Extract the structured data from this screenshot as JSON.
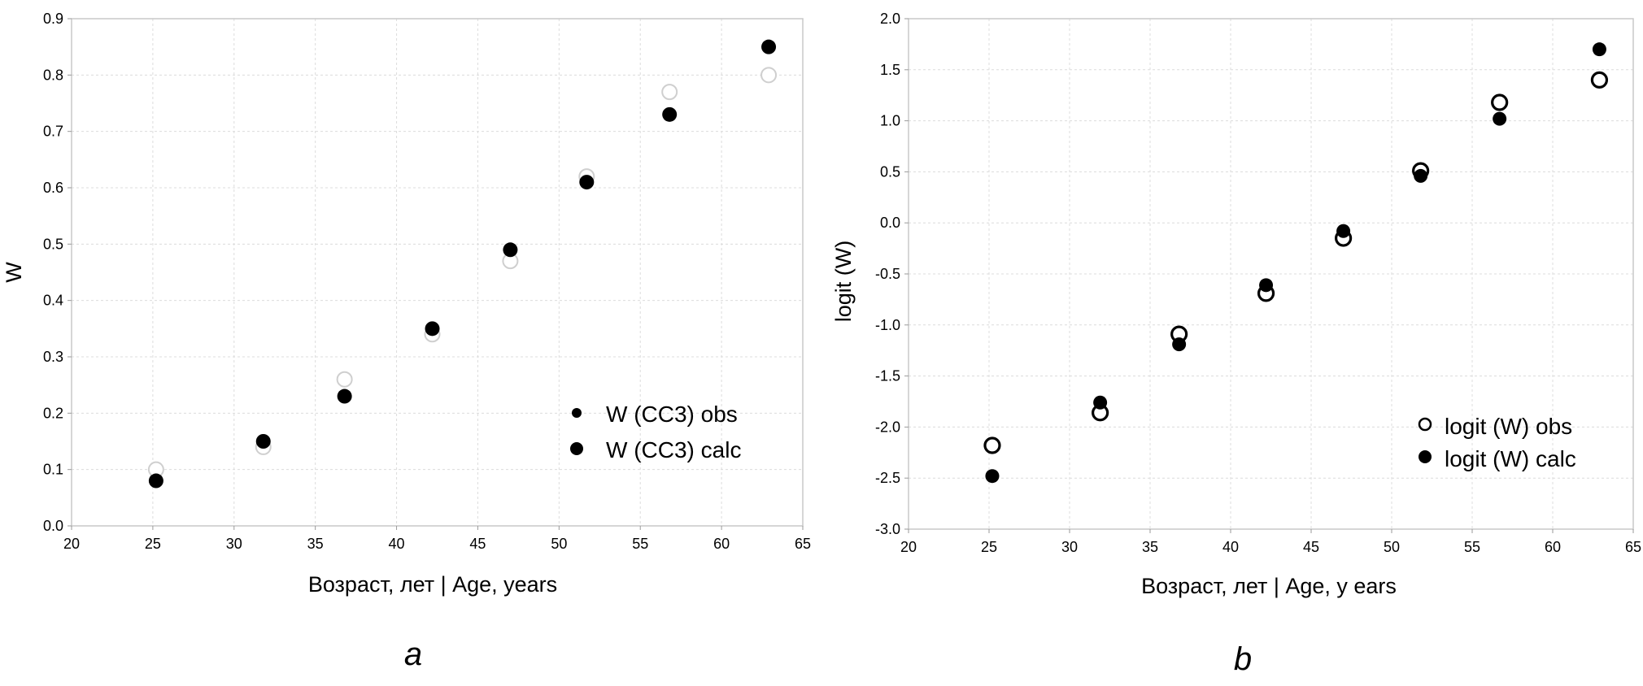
{
  "chart_data": [
    {
      "type": "scatter",
      "panel_label": "a",
      "xlabel": "Возраст, лет | Age, years",
      "ylabel": "W",
      "xlim": [
        20,
        65
      ],
      "ylim": [
        0.0,
        0.9
      ],
      "xticks": [
        "20",
        "25",
        "30",
        "35",
        "40",
        "45",
        "50",
        "55",
        "60",
        "65"
      ],
      "yticks": [
        "0.0",
        "0.1",
        "0.2",
        "0.3",
        "0.4",
        "0.5",
        "0.6",
        "0.7",
        "0.8",
        "0.9"
      ],
      "grid": true,
      "legend_position": "bottom-right",
      "series": [
        {
          "name": "W (CC3) obs",
          "marker": "open-circle",
          "color": "#cfcfcf",
          "x": [
            25.2,
            31.8,
            36.8,
            42.2,
            47.0,
            51.7,
            56.8,
            62.9
          ],
          "y": [
            0.1,
            0.14,
            0.26,
            0.34,
            0.47,
            0.62,
            0.77,
            0.8
          ]
        },
        {
          "name": "W (CC3) calc",
          "marker": "filled-circle",
          "color": "#000000",
          "x": [
            25.2,
            31.8,
            36.8,
            42.2,
            47.0,
            51.7,
            56.8,
            62.9
          ],
          "y": [
            0.08,
            0.15,
            0.23,
            0.35,
            0.49,
            0.61,
            0.73,
            0.85
          ]
        }
      ]
    },
    {
      "type": "scatter",
      "panel_label": "b",
      "xlabel": "Возраст, лет | Age, y ears",
      "ylabel": "logit (W)",
      "xlim": [
        20,
        65
      ],
      "ylim": [
        -3.0,
        2.0
      ],
      "xticks": [
        "20",
        "25",
        "30",
        "35",
        "40",
        "45",
        "50",
        "55",
        "60",
        "65"
      ],
      "yticks": [
        "-3.0",
        "-2.5",
        "-2.0",
        "-1.5",
        "-1.0",
        "-0.5",
        "0.0",
        "0.5",
        "1.0",
        "1.5",
        "2.0"
      ],
      "grid": true,
      "legend_position": "bottom-right",
      "series": [
        {
          "name": "logit (W) obs",
          "marker": "open-circle",
          "color": "#000000",
          "x": [
            25.2,
            31.9,
            36.8,
            42.2,
            47.0,
            51.8,
            56.7,
            62.9
          ],
          "y": [
            -2.18,
            -1.86,
            -1.09,
            -0.69,
            -0.15,
            0.51,
            1.18,
            1.4
          ]
        },
        {
          "name": "logit (W) calc",
          "marker": "filled-circle",
          "color": "#000000",
          "x": [
            25.2,
            31.9,
            36.8,
            42.2,
            47.0,
            51.8,
            56.7,
            62.9
          ],
          "y": [
            -2.48,
            -1.76,
            -1.19,
            -0.61,
            -0.08,
            0.46,
            1.02,
            1.7
          ]
        }
      ]
    }
  ]
}
